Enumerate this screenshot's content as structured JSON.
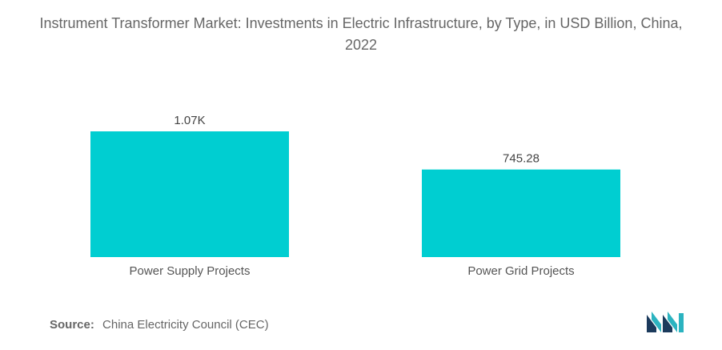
{
  "chart_data": {
    "type": "bar",
    "title": "Instrument Transformer Market: Investments in Electric Infrastructure, by Type, in USD Billion, China, 2022",
    "categories": [
      "Power Supply Projects",
      "Power Grid Projects"
    ],
    "values": [
      1070,
      745.28
    ],
    "data_labels": [
      "1.07K",
      "745.28"
    ],
    "xlabel": "",
    "ylabel": "",
    "ylim": [
      0,
      1070
    ],
    "grid": false,
    "legend": "none",
    "bar_color": "#00CED1"
  },
  "source": {
    "label": "Source:",
    "text": "China Electricity Council (CEC)"
  },
  "logo": {
    "icon": "mordor-intelligence-logo-icon",
    "colors": [
      "#1B3A5C",
      "#2BB3C0"
    ]
  }
}
